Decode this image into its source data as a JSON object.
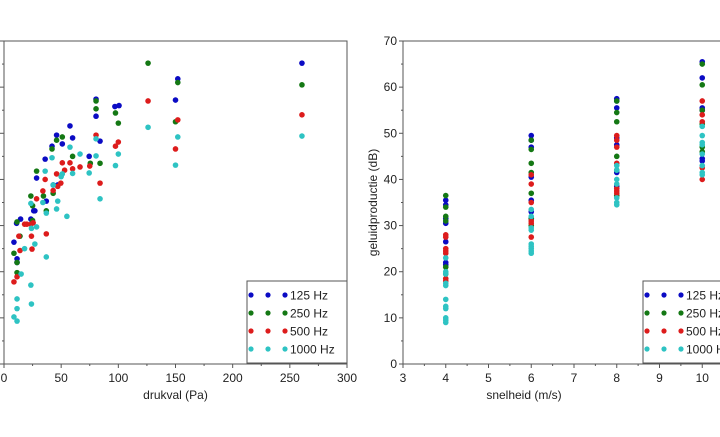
{
  "colors": {
    "125 Hz": "#0b0bc4",
    "250 Hz": "#147814",
    "500 Hz": "#dd1c1c",
    "1000 Hz": "#2ec3c3"
  },
  "chart_data": [
    {
      "type": "scatter",
      "title": "",
      "xlabel": "drukval (Pa)",
      "ylabel": "",
      "xlim": [
        0,
        300
      ],
      "ylim": [
        0,
        70
      ],
      "xticks": [
        "0",
        "50",
        "100",
        "150",
        "200",
        "250",
        "300"
      ],
      "legend": {
        "placement": "bottom-right",
        "entries": [
          "125 Hz",
          "250 Hz",
          "500 Hz",
          "1000 Hz"
        ]
      },
      "series": [
        {
          "name": "125 Hz",
          "points": [
            [
              260.6,
              65.2
            ],
            [
              152,
              61.8
            ],
            [
              150,
              57.2
            ],
            [
              80.5,
              57.4
            ],
            [
              80.5,
              53.7
            ],
            [
              97,
              55.8
            ],
            [
              100.6,
              56
            ],
            [
              84,
              48.3
            ],
            [
              57.7,
              51.6
            ],
            [
              60,
              49
            ],
            [
              46,
              49.6
            ],
            [
              51,
              47.7
            ],
            [
              42,
              47.2
            ],
            [
              74.5,
              45
            ],
            [
              36,
              44.4
            ],
            [
              28.5,
              40.3
            ],
            [
              47,
              38.8
            ],
            [
              43,
              38.8
            ],
            [
              37,
              35.3
            ],
            [
              26,
              33.2
            ],
            [
              14.5,
              31.4
            ],
            [
              23.5,
              31.4
            ],
            [
              11,
              30.5
            ],
            [
              8.7,
              26.4
            ],
            [
              11.4,
              22.8
            ],
            [
              11.4,
              22
            ],
            [
              27,
              33.2
            ]
          ]
        },
        {
          "name": "250 Hz",
          "points": [
            [
              126,
              65.2
            ],
            [
              260.6,
              60.5
            ],
            [
              152,
              61
            ],
            [
              150,
              52.5
            ],
            [
              80.5,
              57
            ],
            [
              80.5,
              55.3
            ],
            [
              97.5,
              54.4
            ],
            [
              100,
              52.2
            ],
            [
              84,
              43.5
            ],
            [
              75.5,
              43.5
            ],
            [
              51,
              49.2
            ],
            [
              46,
              48.5
            ],
            [
              42,
              46.6
            ],
            [
              60,
              45
            ],
            [
              28.5,
              41.8
            ],
            [
              23.5,
              36.4
            ],
            [
              43,
              37
            ],
            [
              34.5,
              36.4
            ],
            [
              25,
              34.3
            ],
            [
              37,
              33.2
            ],
            [
              11.4,
              30.8
            ],
            [
              14,
              27.7
            ],
            [
              8.7,
              24
            ],
            [
              11.4,
              22
            ],
            [
              11.4,
              19.8
            ],
            [
              25,
              31.1
            ]
          ]
        },
        {
          "name": "500 Hz",
          "points": [
            [
              126,
              57
            ],
            [
              260.6,
              54
            ],
            [
              152,
              52.9
            ],
            [
              150,
              46.6
            ],
            [
              80.5,
              49.6
            ],
            [
              100,
              48.1
            ],
            [
              97.5,
              47.2
            ],
            [
              84,
              39.2
            ],
            [
              51,
              43.6
            ],
            [
              57.7,
              43.6
            ],
            [
              66.5,
              42.7
            ],
            [
              75,
              42.9
            ],
            [
              60,
              42.3
            ],
            [
              53,
              42
            ],
            [
              46,
              41.2
            ],
            [
              49.7,
              39.2
            ],
            [
              47,
              38.5
            ],
            [
              43,
              37.6
            ],
            [
              34,
              37.5
            ],
            [
              36,
              40
            ],
            [
              28.5,
              35.8
            ],
            [
              20,
              30.3
            ],
            [
              18,
              30.3
            ],
            [
              23.7,
              30.3
            ],
            [
              25.5,
              30.6
            ],
            [
              13,
              27.7
            ],
            [
              24,
              27.7
            ],
            [
              37,
              28.2
            ],
            [
              14,
              24.6
            ],
            [
              24.5,
              24.9
            ],
            [
              11.4,
              18.9
            ],
            [
              8.7,
              17.8
            ]
          ]
        },
        {
          "name": "1000 Hz",
          "points": [
            [
              260.6,
              49.4
            ],
            [
              126,
              51.3
            ],
            [
              152,
              49.2
            ],
            [
              150,
              43.1
            ],
            [
              80.5,
              48.8
            ],
            [
              80.5,
              45.1
            ],
            [
              74.5,
              41.4
            ],
            [
              100,
              45.5
            ],
            [
              97.5,
              43
            ],
            [
              84,
              35.8
            ],
            [
              66.5,
              45.5
            ],
            [
              57.7,
              47
            ],
            [
              42,
              44.7
            ],
            [
              60,
              41.3
            ],
            [
              51,
              41.2
            ],
            [
              50,
              40.6
            ],
            [
              43,
              38.8
            ],
            [
              47,
              35.3
            ],
            [
              36,
              41.8
            ],
            [
              34,
              35
            ],
            [
              46,
              33.6
            ],
            [
              55,
              32
            ],
            [
              37,
              32.7
            ],
            [
              23.5,
              34.8
            ],
            [
              28.5,
              29.7
            ],
            [
              24,
              29.4
            ],
            [
              27,
              26
            ],
            [
              18,
              25
            ],
            [
              37,
              23.2
            ],
            [
              15,
              19.5
            ],
            [
              23.5,
              17.1
            ],
            [
              11.4,
              14.1
            ],
            [
              24,
              13
            ],
            [
              11.4,
              12
            ],
            [
              8.7,
              10.2
            ],
            [
              11.4,
              9.3
            ]
          ]
        }
      ]
    },
    {
      "type": "scatter",
      "title": "",
      "xlabel": "snelheid (m/s)",
      "ylabel": "geluidproductie (dB)",
      "xlim": [
        3,
        11
      ],
      "ylim": [
        0,
        70
      ],
      "xticks": [
        "3",
        "4",
        "5",
        "6",
        "7",
        "8",
        "9",
        "10"
      ],
      "yticks": [
        "0",
        "10",
        "20",
        "30",
        "40",
        "50",
        "60",
        "70"
      ],
      "legend": {
        "placement": "bottom-right",
        "entries": [
          "125 Hz",
          "250 Hz",
          "500 Hz",
          "1000 Hz"
        ]
      },
      "series": [
        {
          "name": "125 Hz",
          "points": [
            [
              4,
              35.5
            ],
            [
              4,
              34.5
            ],
            [
              4,
              31.5
            ],
            [
              4,
              30.5
            ],
            [
              4,
              26.5
            ],
            [
              4,
              22
            ],
            [
              4,
              21.5
            ],
            [
              6,
              49.5
            ],
            [
              6,
              48.5
            ],
            [
              6,
              47
            ],
            [
              6,
              40.5
            ],
            [
              6,
              35.5
            ],
            [
              6,
              33
            ],
            [
              6,
              31.5
            ],
            [
              8,
              57.5
            ],
            [
              8,
              57
            ],
            [
              8,
              55.5
            ],
            [
              8,
              49
            ],
            [
              8,
              47.5
            ],
            [
              8,
              41.5
            ],
            [
              8,
              38.5
            ],
            [
              10,
              65.5
            ],
            [
              10,
              62
            ],
            [
              10,
              55.5
            ],
            [
              10,
              55
            ],
            [
              10,
              44.5
            ],
            [
              10,
              44
            ]
          ]
        },
        {
          "name": "250 Hz",
          "points": [
            [
              4,
              36.5
            ],
            [
              4,
              34
            ],
            [
              4,
              32
            ],
            [
              4,
              31
            ],
            [
              4,
              21
            ],
            [
              4,
              19.5
            ],
            [
              6,
              48.5
            ],
            [
              6,
              46.5
            ],
            [
              6,
              43.5
            ],
            [
              6,
              41.5
            ],
            [
              6,
              37
            ],
            [
              6,
              31.5
            ],
            [
              6,
              30
            ],
            [
              8,
              57
            ],
            [
              8,
              54.5
            ],
            [
              8,
              52.5
            ],
            [
              8,
              45
            ],
            [
              8,
              42
            ],
            [
              8,
              36.5
            ],
            [
              10,
              65
            ],
            [
              10,
              60.5
            ],
            [
              10,
              55
            ],
            [
              10,
              52
            ],
            [
              10,
              47
            ],
            [
              10,
              46
            ]
          ]
        },
        {
          "name": "500 Hz",
          "points": [
            [
              4,
              28
            ],
            [
              4,
              27.5
            ],
            [
              4,
              25
            ],
            [
              4,
              24.5
            ],
            [
              4,
              24
            ],
            [
              4,
              18.5
            ],
            [
              4,
              18
            ],
            [
              6,
              41
            ],
            [
              6,
              39
            ],
            [
              6,
              35
            ],
            [
              6,
              31
            ],
            [
              6,
              30.5
            ],
            [
              6,
              27.5
            ],
            [
              8,
              49.5
            ],
            [
              8,
              48.5
            ],
            [
              8,
              47
            ],
            [
              8,
              43.5
            ],
            [
              8,
              38
            ],
            [
              8,
              37.5
            ],
            [
              8,
              37
            ],
            [
              10,
              57
            ],
            [
              10,
              54
            ],
            [
              10,
              52.5
            ],
            [
              10,
              42.5
            ],
            [
              10,
              40
            ]
          ]
        },
        {
          "name": "1000 Hz",
          "points": [
            [
              4,
              23
            ],
            [
              4,
              20
            ],
            [
              4,
              19.5
            ],
            [
              4,
              17.5
            ],
            [
              4,
              17
            ],
            [
              4,
              14
            ],
            [
              4,
              12.5
            ],
            [
              4,
              12
            ],
            [
              4,
              10
            ],
            [
              4,
              9.5
            ],
            [
              4,
              9
            ],
            [
              6,
              33.5
            ],
            [
              6,
              32
            ],
            [
              6,
              29.5
            ],
            [
              6,
              29
            ],
            [
              6,
              26
            ],
            [
              6,
              25.5
            ],
            [
              6,
              25
            ],
            [
              6,
              24.5
            ],
            [
              6,
              24
            ],
            [
              8,
              43
            ],
            [
              8,
              42
            ],
            [
              8,
              40
            ],
            [
              8,
              39
            ],
            [
              8,
              36
            ],
            [
              8,
              35
            ],
            [
              8,
              34.5
            ],
            [
              10,
              51.5
            ],
            [
              10,
              49.5
            ],
            [
              10,
              48
            ],
            [
              10,
              47.5
            ],
            [
              10,
              45.5
            ],
            [
              10,
              43
            ],
            [
              10,
              41.5
            ],
            [
              10,
              41
            ]
          ]
        }
      ]
    }
  ]
}
